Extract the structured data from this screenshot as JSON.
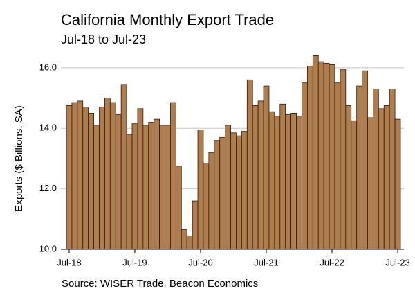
{
  "chart_data": {
    "type": "bar",
    "title": "California Monthly Export Trade",
    "subtitle": "Jul-18 to Jul-23",
    "y_label": "Exports ($ Billions, SA)",
    "source": "Source: WISER Trade, Beacon Economics",
    "categories": [
      "Jul-18",
      null,
      null,
      null,
      null,
      null,
      null,
      null,
      null,
      null,
      null,
      null,
      "Jul-19",
      null,
      null,
      null,
      null,
      null,
      null,
      null,
      null,
      null,
      null,
      null,
      "Jul-20",
      null,
      null,
      null,
      null,
      null,
      null,
      null,
      null,
      null,
      null,
      null,
      "Jul-21",
      null,
      null,
      null,
      null,
      null,
      null,
      null,
      null,
      null,
      null,
      null,
      "Jul-22",
      null,
      null,
      null,
      null,
      null,
      null,
      null,
      null,
      null,
      null,
      null,
      "Jul-23"
    ],
    "values": [
      14.75,
      14.85,
      14.9,
      14.7,
      14.5,
      14.1,
      14.7,
      15.0,
      14.85,
      14.45,
      15.45,
      13.8,
      14.15,
      14.65,
      14.1,
      14.2,
      14.3,
      14.1,
      14.1,
      14.85,
      12.75,
      10.65,
      10.45,
      11.6,
      13.95,
      12.85,
      13.2,
      13.6,
      13.7,
      14.1,
      13.85,
      13.75,
      13.9,
      15.6,
      14.75,
      14.9,
      15.4,
      14.55,
      14.4,
      14.8,
      14.45,
      14.5,
      14.4,
      15.5,
      16.05,
      16.4,
      16.2,
      16.15,
      16.1,
      15.5,
      15.95,
      14.75,
      14.25,
      15.4,
      15.9,
      14.35,
      15.3,
      14.65,
      14.75,
      15.3,
      14.3
    ],
    "color": "#b07d4f",
    "ylim": [
      10,
      16.5
    ],
    "yticks": [
      {
        "value": 10,
        "label": "10.0"
      },
      {
        "value": 12,
        "label": "12.0"
      },
      {
        "value": 14,
        "label": "14.0"
      },
      {
        "value": 16,
        "label": "16.0"
      }
    ],
    "grid": true
  }
}
